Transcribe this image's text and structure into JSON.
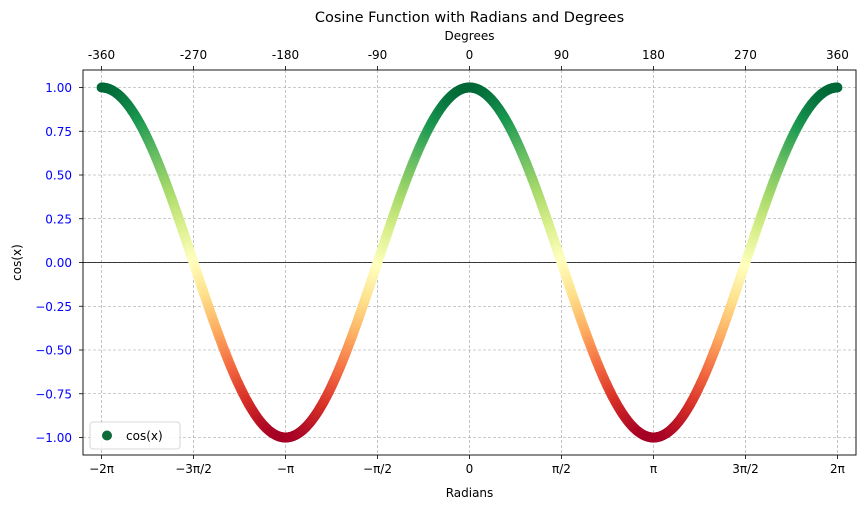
{
  "chart_data": {
    "type": "scatter",
    "title": "Cosine Function with Radians and Degrees",
    "xlabel": "Radians",
    "ylabel": "cos(x)",
    "secondary_xlabel": "Degrees",
    "function": "cos(x)",
    "xlim": [
      -6.6,
      6.6
    ],
    "ylim": [
      -1.1,
      1.1
    ],
    "x_range": [
      -6.2832,
      6.2832
    ],
    "point_count": 1000,
    "colormap": "RdYlGn",
    "grid": true,
    "legend_position": "lower left",
    "series": [
      {
        "name": "cos(x)",
        "marker_color": "#0c6b39"
      }
    ],
    "x_ticks": [
      {
        "value": -6.2832,
        "label": "−2π"
      },
      {
        "value": -4.7124,
        "label": "−3π/2"
      },
      {
        "value": -3.1416,
        "label": "−π"
      },
      {
        "value": -1.5708,
        "label": "−π/2"
      },
      {
        "value": 0,
        "label": "0"
      },
      {
        "value": 1.5708,
        "label": "π/2"
      },
      {
        "value": 3.1416,
        "label": "π"
      },
      {
        "value": 4.7124,
        "label": "3π/2"
      },
      {
        "value": 6.2832,
        "label": "2π"
      }
    ],
    "top_ticks": [
      {
        "value": -6.2832,
        "label": "-360"
      },
      {
        "value": -4.7124,
        "label": "-270"
      },
      {
        "value": -3.1416,
        "label": "-180"
      },
      {
        "value": -1.5708,
        "label": "-90"
      },
      {
        "value": 0,
        "label": "0"
      },
      {
        "value": 1.5708,
        "label": "90"
      },
      {
        "value": 3.1416,
        "label": "180"
      },
      {
        "value": 4.7124,
        "label": "270"
      },
      {
        "value": 6.2832,
        "label": "360"
      }
    ],
    "y_ticks": [
      {
        "value": 1.0,
        "label": "1.00"
      },
      {
        "value": 0.75,
        "label": "0.75"
      },
      {
        "value": 0.5,
        "label": "0.50"
      },
      {
        "value": 0.25,
        "label": "0.25"
      },
      {
        "value": 0.0,
        "label": "0.00"
      },
      {
        "value": -0.25,
        "label": "−0.25"
      },
      {
        "value": -0.5,
        "label": "−0.50"
      },
      {
        "value": -0.75,
        "label": "−0.75"
      },
      {
        "value": -1.0,
        "label": "−1.00"
      }
    ],
    "colors": {
      "ytick": "#0000ff",
      "ylabel": "#0000ff",
      "grid": "#9a9a9a",
      "zero_line": "#000000"
    }
  }
}
